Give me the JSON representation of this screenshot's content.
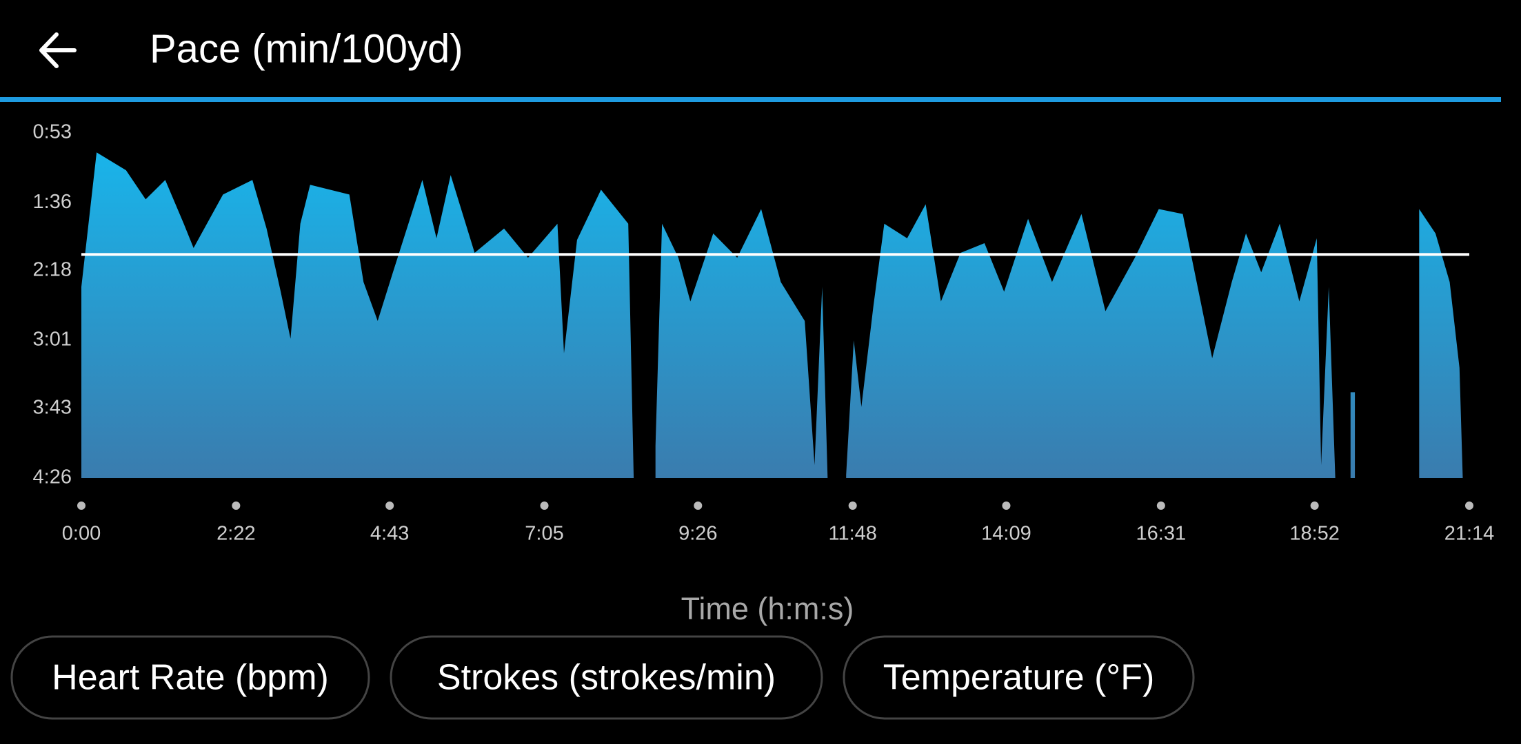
{
  "header": {
    "title": "Pace (min/100yd)"
  },
  "chart_data": {
    "type": "area",
    "xlabel": "Time (h:m:s)",
    "x": [
      0,
      14,
      41,
      59,
      77,
      94,
      103,
      130,
      157,
      170,
      183,
      192,
      201,
      210,
      246,
      259,
      272,
      286,
      313,
      326,
      339,
      361,
      388,
      410,
      437,
      443,
      455,
      477,
      502,
      507,
      517,
      527,
      533,
      548,
      559,
      580,
      602,
      624,
      642,
      664,
      673,
      680,
      685,
      693,
      702,
      709,
      716,
      727,
      737,
      758,
      775,
      789,
      807,
      829,
      847,
      869,
      891,
      918,
      940,
      967,
      989,
      1011,
      1038,
      1056,
      1069,
      1083,
      1100,
      1118,
      1134,
      1138,
      1145,
      1151,
      1158,
      1165,
      1169,
      1200,
      1228,
      1243,
      1256,
      1265,
      1268
    ],
    "series": [
      {
        "name": "Pace",
        "color": "#1aaee6",
        "values": [
          148,
          65,
          76,
          94,
          82,
          109,
          124,
          91,
          82,
          112,
          151,
          180,
          109,
          85,
          91,
          145,
          169,
          139,
          82,
          118,
          79,
          127,
          112,
          130,
          109,
          189,
          119,
          88,
          109,
          266,
          null,
          246,
          109,
          130,
          157,
          115,
          130,
          100,
          145,
          169,
          258,
          148,
          266,
          null,
          264,
          181,
          222,
          160,
          109,
          118,
          97,
          157,
          127,
          121,
          151,
          106,
          145,
          103,
          163,
          130,
          100,
          103,
          192,
          145,
          115,
          139,
          109,
          157,
          118,
          258,
          148,
          266,
          null,
          213,
          213,
          null,
          100,
          115,
          145,
          198,
          266
        ]
      }
    ],
    "average": 128,
    "ylim": [
      266,
      53
    ],
    "yticks": [
      {
        "value": 53,
        "label": "0:53"
      },
      {
        "value": 96,
        "label": "1:36"
      },
      {
        "value": 138,
        "label": "2:18"
      },
      {
        "value": 181,
        "label": "3:01"
      },
      {
        "value": 223,
        "label": "3:43"
      },
      {
        "value": 266,
        "label": "4:26"
      }
    ],
    "xlim": [
      0,
      1274
    ],
    "xticks": [
      {
        "value": 0,
        "label": "0:00"
      },
      {
        "value": 142,
        "label": "2:22"
      },
      {
        "value": 283,
        "label": "4:43"
      },
      {
        "value": 425,
        "label": "7:05"
      },
      {
        "value": 566,
        "label": "9:26"
      },
      {
        "value": 708,
        "label": "11:48"
      },
      {
        "value": 849,
        "label": "14:09"
      },
      {
        "value": 991,
        "label": "16:31"
      },
      {
        "value": 1132,
        "label": "18:52"
      },
      {
        "value": 1274,
        "label": "21:14"
      }
    ]
  },
  "buttons": [
    "Heart Rate (bpm)",
    "Strokes (strokes/min)",
    "Temperature (°F)"
  ]
}
